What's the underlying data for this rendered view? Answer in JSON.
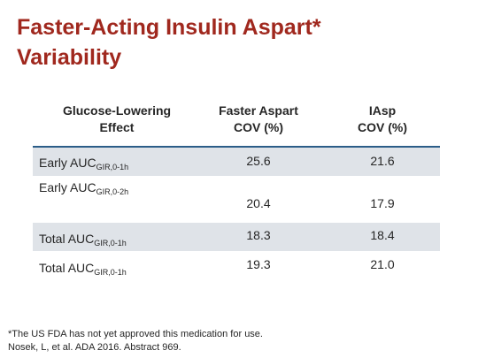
{
  "slide": {
    "title_line1": "Faster-Acting Insulin Aspart*",
    "title_line2": "Variability",
    "accent_color": "#a0281e",
    "divider_color": "#2b5d88",
    "shaded_row_color": "#dfe3e8"
  },
  "table": {
    "headers": [
      {
        "line1": "Glucose-Lowering",
        "line2": "Effect"
      },
      {
        "line1": "Faster Aspart",
        "line2": "COV (%)"
      },
      {
        "line1": "IAsp",
        "line2": "COV (%)"
      }
    ],
    "rows": [
      {
        "label": "Early AUC",
        "subscript": "GIR,0-1h",
        "faster_aspart": "25.6",
        "iasp": "21.6",
        "shaded": true
      },
      {
        "label": "Early AUC",
        "subscript": "GIR,0-2h",
        "faster_aspart": "20.4",
        "iasp": "17.9",
        "shaded": false
      },
      {
        "label": "Total AUC",
        "subscript": "GIR,0-1h",
        "faster_aspart": "18.3",
        "iasp": "18.4",
        "shaded": true
      },
      {
        "label": "Total AUC",
        "subscript": "GIR,0-1h",
        "faster_aspart": "19.3",
        "iasp": "21.0",
        "shaded": false
      }
    ]
  },
  "footnotes": {
    "line1": "*The US FDA has not yet approved this medication for use.",
    "line2": "Nosek, L, et al. ADA 2016. Abstract 969."
  }
}
